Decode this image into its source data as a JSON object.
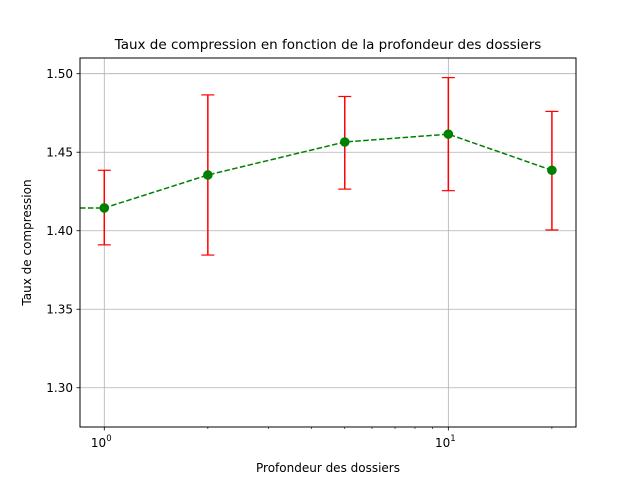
{
  "chart_data": {
    "type": "line",
    "title": "Taux de compression en fonction de la profondeur des dossiers",
    "xlabel": "Profondeur des dossiers",
    "ylabel": "Taux de compression",
    "xscale": "log",
    "xlim": [
      0.85,
      23.5
    ],
    "ylim": [
      1.275,
      1.51
    ],
    "grid": true,
    "x_ticks": [
      {
        "value": 1,
        "base": "10",
        "exp": "0"
      },
      {
        "value": 10,
        "base": "10",
        "exp": "1"
      }
    ],
    "x_minor_ticks": [
      2,
      3,
      4,
      5,
      6,
      7,
      8,
      9,
      20
    ],
    "y_ticks": [
      {
        "value": 1.3,
        "label": "1.30"
      },
      {
        "value": 1.35,
        "label": "1.35"
      },
      {
        "value": 1.4,
        "label": "1.40"
      },
      {
        "value": 1.45,
        "label": "1.45"
      },
      {
        "value": 1.5,
        "label": "1.50"
      }
    ],
    "series": [
      {
        "line_color": "#008000",
        "marker_color": "#008000",
        "errorbar_color": "#ff0000",
        "line_style": "dashed",
        "points": [
          {
            "x": 1,
            "y": 1.4145,
            "err_low": 1.391,
            "err_high": 1.4385
          },
          {
            "x": 2,
            "y": 1.4355,
            "err_low": 1.3845,
            "err_high": 1.4865
          },
          {
            "x": 5,
            "y": 1.4565,
            "err_low": 1.4265,
            "err_high": 1.4855
          },
          {
            "x": 10,
            "y": 1.4615,
            "err_low": 1.4255,
            "err_high": 1.4975
          },
          {
            "x": 20,
            "y": 1.4385,
            "err_low": 1.4005,
            "err_high": 1.476
          }
        ]
      }
    ]
  }
}
